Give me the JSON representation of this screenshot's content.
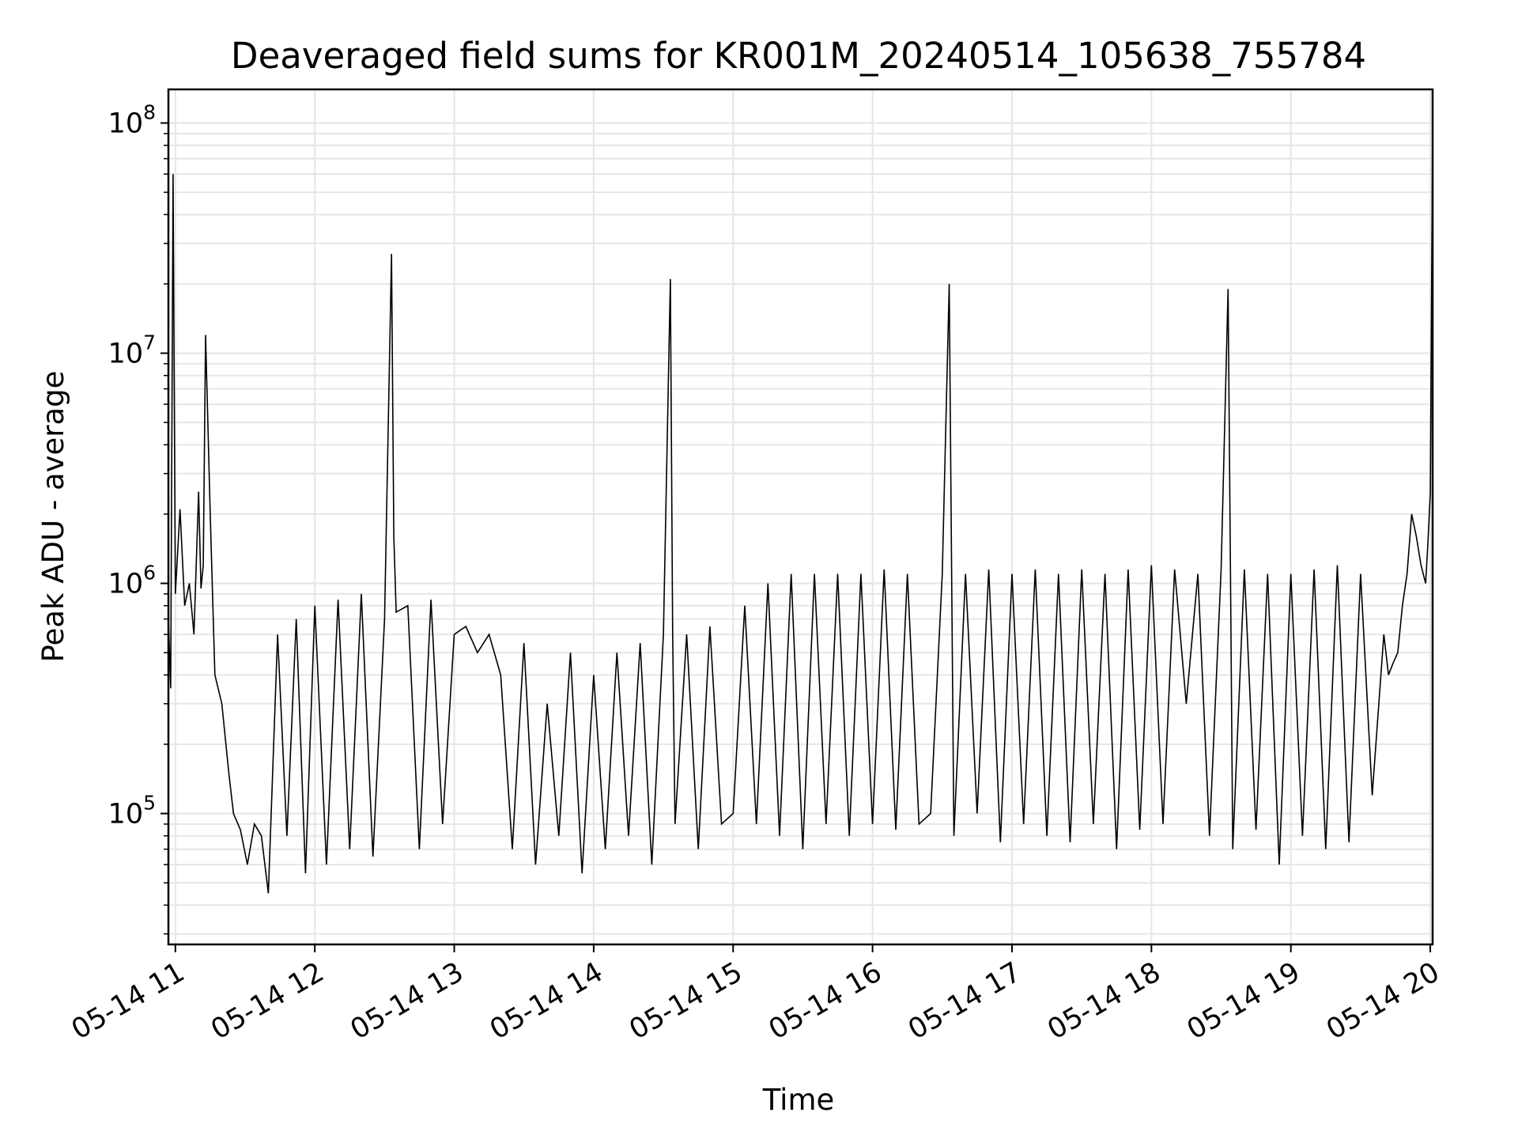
{
  "chart_data": {
    "type": "line",
    "title": "Deaveraged field sums for KR001M_20240514_105638_755784",
    "xlabel": "Time",
    "ylabel": "Peak ADU - average",
    "xaxis": {
      "type": "date",
      "range": [
        "2024-05-14T10:57",
        "2024-05-14T20:01"
      ],
      "ticks": [
        "05-14 11",
        "05-14 12",
        "05-14 13",
        "05-14 14",
        "05-14 15",
        "05-14 16",
        "05-14 17",
        "05-14 18",
        "05-14 19",
        "05-14 20"
      ]
    },
    "yaxis": {
      "scale": "log",
      "range": [
        27000,
        140000000
      ],
      "ticks": [
        {
          "value": 100000,
          "base": "10",
          "exp": "5"
        },
        {
          "value": 1000000,
          "base": "10",
          "exp": "6"
        },
        {
          "value": 10000000,
          "base": "10",
          "exp": "7"
        },
        {
          "value": 100000000,
          "base": "10",
          "exp": "8"
        }
      ]
    },
    "grid": true,
    "line_color": "#000000",
    "grid_color": "#e6e6e6",
    "series": [
      {
        "x": [
          "2024-05-14T10:57",
          "2024-05-14T10:58",
          "2024-05-14T10:59",
          "2024-05-14T11:00",
          "2024-05-14T11:02",
          "2024-05-14T11:04",
          "2024-05-14T11:06",
          "2024-05-14T11:08",
          "2024-05-14T11:10",
          "2024-05-14T11:11",
          "2024-05-14T11:12",
          "2024-05-14T11:13",
          "2024-05-14T11:15",
          "2024-05-14T11:17",
          "2024-05-14T11:20",
          "2024-05-14T11:23",
          "2024-05-14T11:25",
          "2024-05-14T11:28",
          "2024-05-14T11:31",
          "2024-05-14T11:34",
          "2024-05-14T11:37",
          "2024-05-14T11:40",
          "2024-05-14T11:44",
          "2024-05-14T11:48",
          "2024-05-14T11:52",
          "2024-05-14T11:56",
          "2024-05-14T12:00",
          "2024-05-14T12:05",
          "2024-05-14T12:10",
          "2024-05-14T12:15",
          "2024-05-14T12:20",
          "2024-05-14T12:25",
          "2024-05-14T12:30",
          "2024-05-14T12:33",
          "2024-05-14T12:34",
          "2024-05-14T12:35",
          "2024-05-14T12:40",
          "2024-05-14T12:45",
          "2024-05-14T12:50",
          "2024-05-14T12:55",
          "2024-05-14T13:00",
          "2024-05-14T13:05",
          "2024-05-14T13:10",
          "2024-05-14T13:15",
          "2024-05-14T13:20",
          "2024-05-14T13:25",
          "2024-05-14T13:30",
          "2024-05-14T13:35",
          "2024-05-14T13:40",
          "2024-05-14T13:45",
          "2024-05-14T13:50",
          "2024-05-14T13:55",
          "2024-05-14T14:00",
          "2024-05-14T14:05",
          "2024-05-14T14:10",
          "2024-05-14T14:15",
          "2024-05-14T14:20",
          "2024-05-14T14:25",
          "2024-05-14T14:30",
          "2024-05-14T14:33",
          "2024-05-14T14:34",
          "2024-05-14T14:35",
          "2024-05-14T14:40",
          "2024-05-14T14:45",
          "2024-05-14T14:50",
          "2024-05-14T14:55",
          "2024-05-14T15:00",
          "2024-05-14T15:05",
          "2024-05-14T15:10",
          "2024-05-14T15:15",
          "2024-05-14T15:20",
          "2024-05-14T15:25",
          "2024-05-14T15:30",
          "2024-05-14T15:35",
          "2024-05-14T15:40",
          "2024-05-14T15:45",
          "2024-05-14T15:50",
          "2024-05-14T15:55",
          "2024-05-14T16:00",
          "2024-05-14T16:05",
          "2024-05-14T16:10",
          "2024-05-14T16:15",
          "2024-05-14T16:20",
          "2024-05-14T16:25",
          "2024-05-14T16:30",
          "2024-05-14T16:33",
          "2024-05-14T16:34",
          "2024-05-14T16:35",
          "2024-05-14T16:40",
          "2024-05-14T16:45",
          "2024-05-14T16:50",
          "2024-05-14T16:55",
          "2024-05-14T17:00",
          "2024-05-14T17:05",
          "2024-05-14T17:10",
          "2024-05-14T17:15",
          "2024-05-14T17:20",
          "2024-05-14T17:25",
          "2024-05-14T17:30",
          "2024-05-14T17:35",
          "2024-05-14T17:40",
          "2024-05-14T17:45",
          "2024-05-14T17:50",
          "2024-05-14T17:55",
          "2024-05-14T18:00",
          "2024-05-14T18:05",
          "2024-05-14T18:10",
          "2024-05-14T18:15",
          "2024-05-14T18:20",
          "2024-05-14T18:25",
          "2024-05-14T18:30",
          "2024-05-14T18:33",
          "2024-05-14T18:34",
          "2024-05-14T18:35",
          "2024-05-14T18:40",
          "2024-05-14T18:45",
          "2024-05-14T18:50",
          "2024-05-14T18:55",
          "2024-05-14T19:00",
          "2024-05-14T19:05",
          "2024-05-14T19:10",
          "2024-05-14T19:15",
          "2024-05-14T19:20",
          "2024-05-14T19:25",
          "2024-05-14T19:30",
          "2024-05-14T19:35",
          "2024-05-14T19:40",
          "2024-05-14T19:42",
          "2024-05-14T19:44",
          "2024-05-14T19:46",
          "2024-05-14T19:48",
          "2024-05-14T19:50",
          "2024-05-14T19:52",
          "2024-05-14T19:54",
          "2024-05-14T19:56",
          "2024-05-14T19:58",
          "2024-05-14T19:59",
          "2024-05-14T20:00",
          "2024-05-14T20:01"
        ],
        "y": [
          700000,
          350000,
          60000000,
          900000,
          2100000,
          800000,
          1000000,
          600000,
          2500000,
          950000,
          1200000,
          12000000,
          2000000,
          400000,
          300000,
          150000,
          100000,
          85000,
          60000,
          90000,
          80000,
          45000,
          600000,
          80000,
          700000,
          55000,
          800000,
          60000,
          850000,
          70000,
          900000,
          65000,
          700000,
          27000000,
          1600000,
          750000,
          800000,
          70000,
          850000,
          90000,
          600000,
          650000,
          500000,
          600000,
          400000,
          70000,
          550000,
          60000,
          300000,
          80000,
          500000,
          55000,
          400000,
          70000,
          500000,
          80000,
          550000,
          60000,
          600000,
          21000000,
          600000,
          90000,
          600000,
          70000,
          650000,
          90000,
          100000,
          800000,
          90000,
          1000000,
          80000,
          1100000,
          70000,
          1100000,
          90000,
          1100000,
          80000,
          1100000,
          90000,
          1150000,
          85000,
          1100000,
          90000,
          100000,
          1100000,
          20000000,
          1150000,
          80000,
          1100000,
          100000,
          1150000,
          75000,
          1100000,
          90000,
          1150000,
          80000,
          1100000,
          75000,
          1150000,
          90000,
          1100000,
          70000,
          1150000,
          85000,
          1200000,
          90000,
          1150000,
          300000,
          1100000,
          80000,
          1150000,
          19000000,
          1150000,
          70000,
          1150000,
          85000,
          1100000,
          60000,
          1100000,
          80000,
          1150000,
          70000,
          1200000,
          75000,
          1100000,
          120000,
          600000,
          400000,
          450000,
          500000,
          800000,
          1100000,
          2000000,
          1600000,
          1200000,
          1000000,
          1500000,
          2500000,
          95000000
        ]
      }
    ]
  }
}
